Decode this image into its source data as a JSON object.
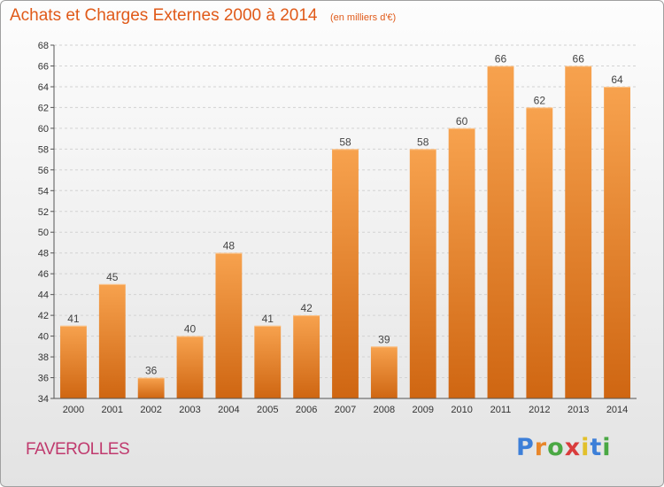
{
  "chart_data": {
    "type": "bar",
    "title": "Achats et Charges Externes 2000 à 2014",
    "subtitle": "(en milliers d'€)",
    "categories": [
      "2000",
      "2001",
      "2002",
      "2003",
      "2004",
      "2005",
      "2006",
      "2007",
      "2008",
      "2009",
      "2010",
      "2011",
      "2012",
      "2013",
      "2014"
    ],
    "values": [
      41,
      45,
      36,
      40,
      48,
      41,
      42,
      58,
      39,
      58,
      60,
      66,
      62,
      66,
      64
    ],
    "ylim": [
      34,
      68
    ],
    "ytick_step": 2,
    "grid": true,
    "bar_color": "#f08a2e"
  },
  "footer": {
    "commune": "FAVEROLLES",
    "logo_text": "Proxiti"
  }
}
